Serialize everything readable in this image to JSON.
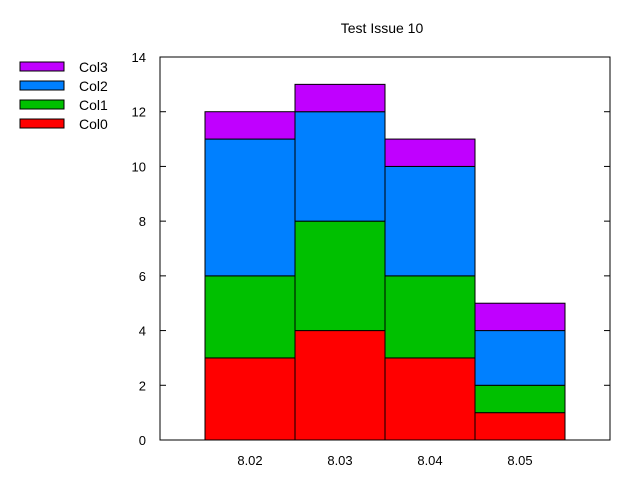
{
  "chart_data": {
    "type": "bar",
    "stacked": true,
    "title": "Test Issue 10",
    "xlabel": "",
    "ylabel": "",
    "categories": [
      "8.02",
      "8.03",
      "8.04",
      "8.05"
    ],
    "ylim": [
      0,
      14
    ],
    "yticks": [
      0,
      2,
      4,
      6,
      8,
      10,
      12,
      14
    ],
    "grid": false,
    "legend_position": "left-top",
    "series": [
      {
        "name": "Col0",
        "color": "#ff0000",
        "values": [
          3,
          4,
          3,
          1
        ]
      },
      {
        "name": "Col1",
        "color": "#00c000",
        "values": [
          3,
          4,
          3,
          1
        ]
      },
      {
        "name": "Col2",
        "color": "#0080ff",
        "values": [
          5,
          4,
          4,
          2
        ]
      },
      {
        "name": "Col3",
        "color": "#c000ff",
        "values": [
          1,
          1,
          1,
          1
        ]
      }
    ]
  }
}
